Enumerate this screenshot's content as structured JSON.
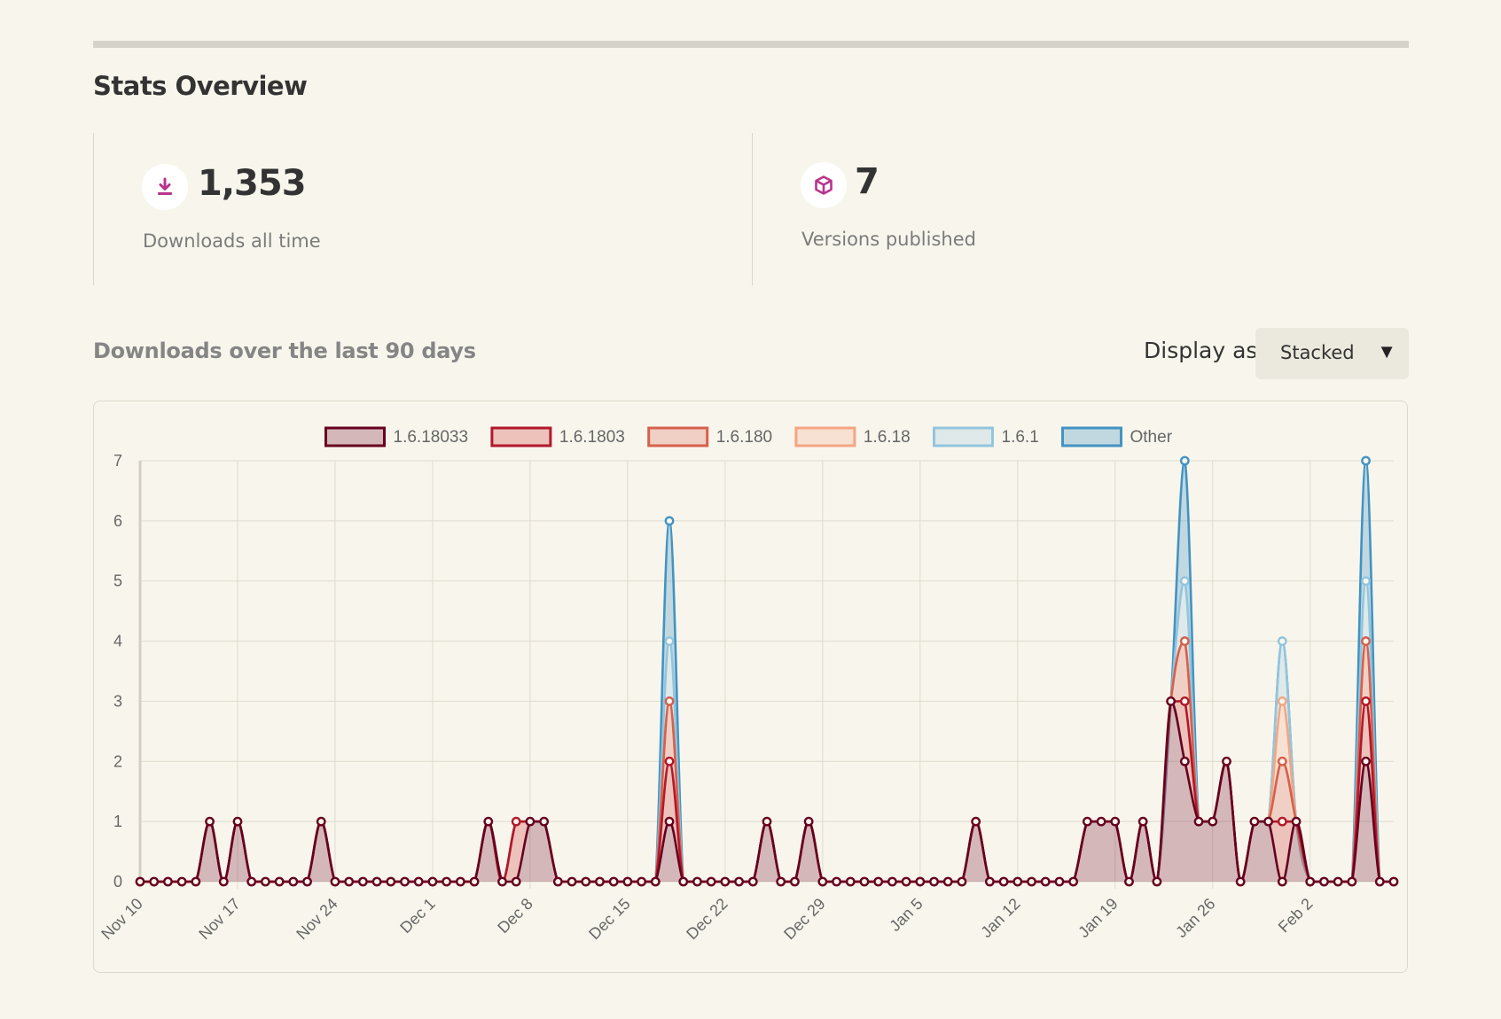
{
  "page": {
    "title": "Stats Overview",
    "downloads": {
      "value": "1,353",
      "label": "Downloads all time"
    },
    "versions": {
      "value": "7",
      "label": "Versions published"
    },
    "chart_title": "Downloads over the last 90 days",
    "display_as": {
      "label": "Display as",
      "selected": "Stacked"
    }
  },
  "colors": {
    "background": "#f8f6ec",
    "accent": "#b8358d"
  },
  "chart_data": {
    "type": "area",
    "stacked": true,
    "title": "",
    "xlabel": "",
    "ylabel": "",
    "ylim": [
      0,
      7
    ],
    "yticks": [
      0,
      1,
      2,
      3,
      4,
      5,
      6,
      7
    ],
    "x_start": "2024-11-10",
    "x_ticks": [
      {
        "label": "Nov 10",
        "date": "2024-11-10"
      },
      {
        "label": "Nov 17",
        "date": "2024-11-17"
      },
      {
        "label": "Nov 24",
        "date": "2024-11-24"
      },
      {
        "label": "Dec 1",
        "date": "2024-12-01"
      },
      {
        "label": "Dec 8",
        "date": "2024-12-08"
      },
      {
        "label": "Dec 15",
        "date": "2024-12-15"
      },
      {
        "label": "Dec 22",
        "date": "2024-12-22"
      },
      {
        "label": "Dec 29",
        "date": "2024-12-29"
      },
      {
        "label": "Jan 5",
        "date": "2025-01-05"
      },
      {
        "label": "Jan 12",
        "date": "2025-01-12"
      },
      {
        "label": "Jan 19",
        "date": "2025-01-19"
      },
      {
        "label": "Jan 26",
        "date": "2025-01-26"
      },
      {
        "label": "Feb 2",
        "date": "2025-02-02"
      }
    ],
    "legend_position": "top",
    "grid": true,
    "series": [
      {
        "name": "1.6.18033",
        "stroke": "#67001f",
        "fill": "rgba(103,0,31,0.25)",
        "points": [
          [
            "2024-11-10",
            0
          ],
          [
            "2024-11-11",
            0
          ],
          [
            "2024-11-12",
            0
          ],
          [
            "2024-11-13",
            0
          ],
          [
            "2024-11-14",
            0
          ],
          [
            "2024-11-15",
            1
          ],
          [
            "2024-11-16",
            0
          ],
          [
            "2024-11-17",
            1
          ],
          [
            "2024-11-18",
            0
          ],
          [
            "2024-11-19",
            0
          ],
          [
            "2024-11-20",
            0
          ],
          [
            "2024-11-21",
            0
          ],
          [
            "2024-11-22",
            0
          ],
          [
            "2024-11-23",
            1
          ],
          [
            "2024-11-24",
            0
          ],
          [
            "2024-11-25",
            0
          ],
          [
            "2024-11-26",
            0
          ],
          [
            "2024-11-27",
            0
          ],
          [
            "2024-11-28",
            0
          ],
          [
            "2024-11-29",
            0
          ],
          [
            "2024-11-30",
            0
          ],
          [
            "2024-12-01",
            0
          ],
          [
            "2024-12-02",
            0
          ],
          [
            "2024-12-03",
            0
          ],
          [
            "2024-12-04",
            0
          ],
          [
            "2024-12-05",
            1
          ],
          [
            "2024-12-06",
            0
          ],
          [
            "2024-12-07",
            0
          ],
          [
            "2024-12-08",
            1
          ],
          [
            "2024-12-09",
            1
          ],
          [
            "2024-12-10",
            0
          ],
          [
            "2024-12-11",
            0
          ],
          [
            "2024-12-12",
            0
          ],
          [
            "2024-12-13",
            0
          ],
          [
            "2024-12-14",
            0
          ],
          [
            "2024-12-15",
            0
          ],
          [
            "2024-12-16",
            0
          ],
          [
            "2024-12-17",
            0
          ],
          [
            "2024-12-18",
            1
          ],
          [
            "2024-12-19",
            0
          ],
          [
            "2024-12-20",
            0
          ],
          [
            "2024-12-21",
            0
          ],
          [
            "2024-12-22",
            0
          ],
          [
            "2024-12-23",
            0
          ],
          [
            "2024-12-24",
            0
          ],
          [
            "2024-12-25",
            1
          ],
          [
            "2024-12-26",
            0
          ],
          [
            "2024-12-27",
            0
          ],
          [
            "2024-12-28",
            1
          ],
          [
            "2024-12-29",
            0
          ],
          [
            "2024-12-30",
            0
          ],
          [
            "2024-12-31",
            0
          ],
          [
            "2025-01-01",
            0
          ],
          [
            "2025-01-02",
            0
          ],
          [
            "2025-01-03",
            0
          ],
          [
            "2025-01-04",
            0
          ],
          [
            "2025-01-05",
            0
          ],
          [
            "2025-01-06",
            0
          ],
          [
            "2025-01-07",
            0
          ],
          [
            "2025-01-08",
            0
          ],
          [
            "2025-01-09",
            1
          ],
          [
            "2025-01-10",
            0
          ],
          [
            "2025-01-11",
            0
          ],
          [
            "2025-01-12",
            0
          ],
          [
            "2025-01-13",
            0
          ],
          [
            "2025-01-14",
            0
          ],
          [
            "2025-01-15",
            0
          ],
          [
            "2025-01-16",
            0
          ],
          [
            "2025-01-17",
            1
          ],
          [
            "2025-01-18",
            1
          ],
          [
            "2025-01-19",
            1
          ],
          [
            "2025-01-20",
            0
          ],
          [
            "2025-01-21",
            1
          ],
          [
            "2025-01-22",
            0
          ],
          [
            "2025-01-23",
            3
          ],
          [
            "2025-01-24",
            2
          ],
          [
            "2025-01-25",
            1
          ],
          [
            "2025-01-26",
            1
          ],
          [
            "2025-01-27",
            2
          ],
          [
            "2025-01-28",
            0
          ],
          [
            "2025-01-29",
            1
          ],
          [
            "2025-01-30",
            1
          ],
          [
            "2025-01-31",
            0
          ],
          [
            "2025-02-01",
            1
          ],
          [
            "2025-02-02",
            0
          ],
          [
            "2025-02-03",
            0
          ],
          [
            "2025-02-04",
            0
          ],
          [
            "2025-02-05",
            0
          ],
          [
            "2025-02-06",
            2
          ],
          [
            "2025-02-07",
            0
          ],
          [
            "2025-02-08",
            0
          ]
        ]
      },
      {
        "name": "1.6.1803",
        "stroke": "#b2182b",
        "fill": "rgba(214,96,96,0.35)",
        "points": [
          [
            "2024-12-07",
            1
          ],
          [
            "2024-12-18",
            1
          ],
          [
            "2025-01-24",
            1
          ],
          [
            "2025-01-31",
            1
          ],
          [
            "2025-02-06",
            1
          ]
        ]
      },
      {
        "name": "1.6.180",
        "stroke": "#d6604d",
        "fill": "rgba(214,96,77,0.25)",
        "points": [
          [
            "2024-12-18",
            1
          ],
          [
            "2025-01-24",
            1
          ],
          [
            "2025-01-31",
            1
          ],
          [
            "2025-02-06",
            1
          ]
        ]
      },
      {
        "name": "1.6.18",
        "stroke": "#f4a582",
        "fill": "rgba(244,165,130,0.25)",
        "points": [
          [
            "2025-01-31",
            1
          ]
        ]
      },
      {
        "name": "1.6.1",
        "stroke": "#92c5de",
        "fill": "rgba(146,197,222,0.25)",
        "points": [
          [
            "2024-12-18",
            1
          ],
          [
            "2025-01-24",
            1
          ],
          [
            "2025-01-31",
            1
          ],
          [
            "2025-02-06",
            1
          ]
        ]
      },
      {
        "name": "Other",
        "stroke": "#4393c3",
        "fill": "rgba(67,147,195,0.3)",
        "points": [
          [
            "2024-12-18",
            2
          ],
          [
            "2025-01-24",
            2
          ],
          [
            "2025-02-06",
            2
          ]
        ]
      }
    ]
  }
}
